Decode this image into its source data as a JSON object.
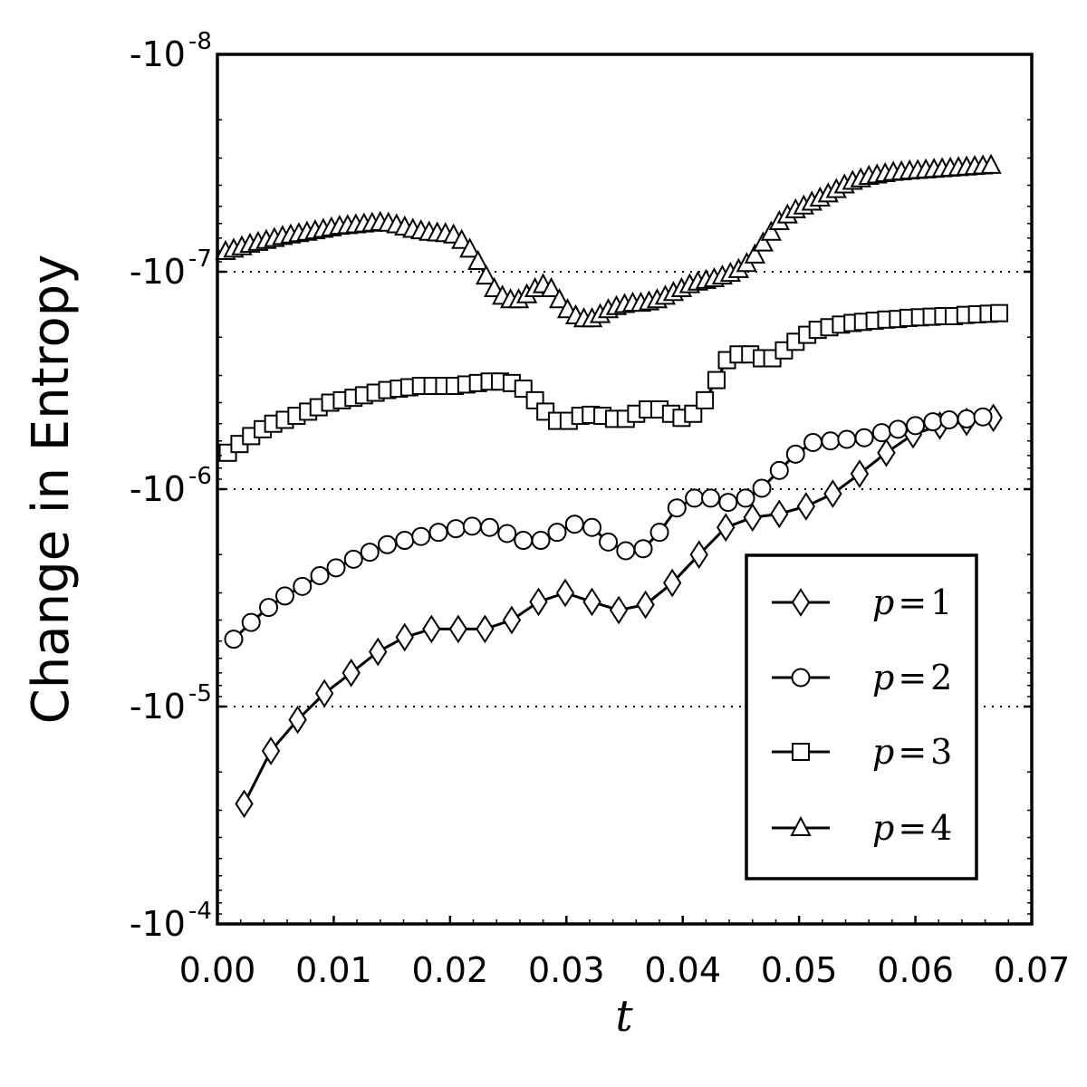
{
  "chart_data": {
    "type": "line",
    "xlabel": "t",
    "ylabel": "Change in Entropy",
    "xlim": [
      0.0,
      0.07
    ],
    "x_ticks": [
      "0.00",
      "0.01",
      "0.02",
      "0.03",
      "0.04",
      "0.05",
      "0.06",
      "0.07"
    ],
    "y_scale": "symlog-negative",
    "ylim_exponents": [
      -4,
      -8
    ],
    "y_ticks": [
      {
        "base": "-10",
        "exp": "-8",
        "value": -1e-08
      },
      {
        "base": "-10",
        "exp": "-7",
        "value": -1e-07
      },
      {
        "base": "-10",
        "exp": "-6",
        "value": -1e-06
      },
      {
        "base": "-10",
        "exp": "-5",
        "value": -1e-05
      },
      {
        "base": "-10",
        "exp": "-4",
        "value": -0.0001
      }
    ],
    "grid": "dotted horizontal at -1e-7, -1e-6, -1e-5",
    "legend_position": "lower-right",
    "series": [
      {
        "name": "p=1",
        "label_var": "p",
        "label_eq": "=",
        "label_num": "1",
        "marker": "diamond",
        "x": [
          0.0023,
          0.0046,
          0.0069,
          0.0092,
          0.0115,
          0.0138,
          0.0161,
          0.0184,
          0.0207,
          0.023,
          0.0253,
          0.0276,
          0.0299,
          0.0322,
          0.0345,
          0.0368,
          0.0391,
          0.0414,
          0.0437,
          0.046,
          0.0483,
          0.0506,
          0.0529,
          0.0552,
          0.0575,
          0.0598,
          0.0621,
          0.0644,
          0.0667
        ],
        "y": [
          -2.8e-05,
          -1.6e-05,
          -1.15e-05,
          -8.7e-06,
          -7e-06,
          -5.6e-06,
          -4.8e-06,
          -4.4e-06,
          -4.4e-06,
          -4.4e-06,
          -4e-06,
          -3.3e-06,
          -3e-06,
          -3.3e-06,
          -3.6e-06,
          -3.4e-06,
          -2.7e-06,
          -2e-06,
          -1.5e-06,
          -1.35e-06,
          -1.3e-06,
          -1.2e-06,
          -1.05e-06,
          -8.5e-07,
          -6.8e-07,
          -5.6e-07,
          -5.1e-07,
          -4.9e-07,
          -4.7e-07
        ]
      },
      {
        "name": "p=2",
        "label_var": "p",
        "label_eq": "=",
        "label_num": "2",
        "marker": "circle",
        "x": [
          0.0014,
          0.0029,
          0.0044,
          0.0058,
          0.0073,
          0.0088,
          0.0102,
          0.0117,
          0.0131,
          0.0146,
          0.0161,
          0.0175,
          0.019,
          0.0205,
          0.0219,
          0.0234,
          0.0249,
          0.0263,
          0.0278,
          0.0292,
          0.0307,
          0.0322,
          0.0336,
          0.0351,
          0.0366,
          0.038,
          0.0395,
          0.041,
          0.0424,
          0.0439,
          0.0454,
          0.0468,
          0.0483,
          0.0497,
          0.0512,
          0.0527,
          0.0541,
          0.0556,
          0.0571,
          0.0585,
          0.06,
          0.0615,
          0.0629,
          0.0644,
          0.0658
        ],
        "y": [
          -4.9e-06,
          -4.1e-06,
          -3.5e-06,
          -3.1e-06,
          -2.8e-06,
          -2.5e-06,
          -2.3e-06,
          -2.1e-06,
          -1.95e-06,
          -1.8e-06,
          -1.72e-06,
          -1.65e-06,
          -1.58e-06,
          -1.52e-06,
          -1.48e-06,
          -1.5e-06,
          -1.6e-06,
          -1.72e-06,
          -1.72e-06,
          -1.58e-06,
          -1.45e-06,
          -1.5e-06,
          -1.75e-06,
          -1.92e-06,
          -1.88e-06,
          -1.58e-06,
          -1.22e-06,
          -1.1e-06,
          -1.1e-06,
          -1.15e-06,
          -1.1e-06,
          -9.9e-07,
          -8.2e-07,
          -6.9e-07,
          -6.1e-07,
          -6e-07,
          -5.9e-07,
          -5.8e-07,
          -5.5e-07,
          -5.3e-07,
          -5.1e-07,
          -4.9e-07,
          -4.8e-07,
          -4.75e-07,
          -4.65e-07
        ]
      },
      {
        "name": "p=3",
        "label_var": "p",
        "label_eq": "=",
        "label_num": "3",
        "marker": "square",
        "x": [
          0.0009,
          0.0019,
          0.0029,
          0.0039,
          0.0048,
          0.0058,
          0.0068,
          0.0078,
          0.0087,
          0.0097,
          0.0107,
          0.0117,
          0.0126,
          0.0136,
          0.0146,
          0.0156,
          0.0165,
          0.0175,
          0.0185,
          0.0195,
          0.0204,
          0.0214,
          0.0224,
          0.0234,
          0.0243,
          0.0253,
          0.0263,
          0.0273,
          0.0282,
          0.0292,
          0.0302,
          0.0312,
          0.0321,
          0.0331,
          0.0341,
          0.0351,
          0.036,
          0.037,
          0.038,
          0.039,
          0.0399,
          0.0409,
          0.0419,
          0.0429,
          0.0438,
          0.0448,
          0.0458,
          0.0468,
          0.0477,
          0.0487,
          0.0497,
          0.0507,
          0.0516,
          0.0526,
          0.0536,
          0.0546,
          0.0555,
          0.0565,
          0.0575,
          0.0585,
          0.0594,
          0.0604,
          0.0614,
          0.0624,
          0.0633,
          0.0643,
          0.0653,
          0.0663,
          0.0672
        ],
        "y": [
          -6.8e-07,
          -6.2e-07,
          -5.7e-07,
          -5.3e-07,
          -5e-07,
          -4.8e-07,
          -4.6e-07,
          -4.4e-07,
          -4.2e-07,
          -4e-07,
          -3.9e-07,
          -3.8e-07,
          -3.7e-07,
          -3.6e-07,
          -3.5e-07,
          -3.45e-07,
          -3.4e-07,
          -3.35e-07,
          -3.35e-07,
          -3.35e-07,
          -3.35e-07,
          -3.3e-07,
          -3.25e-07,
          -3.2e-07,
          -3.2e-07,
          -3.25e-07,
          -3.45e-07,
          -3.9e-07,
          -4.4e-07,
          -4.85e-07,
          -4.85e-07,
          -4.6e-07,
          -4.55e-07,
          -4.6e-07,
          -4.75e-07,
          -4.75e-07,
          -4.5e-07,
          -4.3e-07,
          -4.3e-07,
          -4.5e-07,
          -4.7e-07,
          -4.5e-07,
          -3.9e-07,
          -3.15e-07,
          -2.55e-07,
          -2.4e-07,
          -2.4e-07,
          -2.5e-07,
          -2.5e-07,
          -2.3e-07,
          -2.1e-07,
          -1.95e-07,
          -1.85e-07,
          -1.8e-07,
          -1.75e-07,
          -1.72e-07,
          -1.7e-07,
          -1.68e-07,
          -1.66e-07,
          -1.65e-07,
          -1.63e-07,
          -1.62e-07,
          -1.61e-07,
          -1.6e-07,
          -1.6e-07,
          -1.58e-07,
          -1.57e-07,
          -1.56e-07,
          -1.55e-07
        ]
      },
      {
        "name": "p=4",
        "label_var": "p",
        "label_eq": "=",
        "label_num": "4",
        "marker": "triangle",
        "x": [
          0.0007,
          0.0014,
          0.0021,
          0.0028,
          0.0035,
          0.0042,
          0.0049,
          0.0056,
          0.0063,
          0.007,
          0.0077,
          0.0084,
          0.0091,
          0.0098,
          0.0105,
          0.0112,
          0.0119,
          0.0126,
          0.0133,
          0.014,
          0.0147,
          0.0154,
          0.0161,
          0.0168,
          0.0175,
          0.0182,
          0.0189,
          0.0196,
          0.0203,
          0.021,
          0.0217,
          0.0224,
          0.0231,
          0.0238,
          0.0245,
          0.0252,
          0.0259,
          0.0266,
          0.0273,
          0.028,
          0.0287,
          0.0294,
          0.0301,
          0.0308,
          0.0315,
          0.0322,
          0.0329,
          0.0336,
          0.0343,
          0.035,
          0.0357,
          0.0364,
          0.0371,
          0.0378,
          0.0385,
          0.0392,
          0.0399,
          0.0406,
          0.0413,
          0.042,
          0.0427,
          0.0434,
          0.0441,
          0.0448,
          0.0455,
          0.0462,
          0.0469,
          0.0476,
          0.0483,
          0.049,
          0.0497,
          0.0504,
          0.0511,
          0.0518,
          0.0525,
          0.0532,
          0.0539,
          0.0546,
          0.0553,
          0.056,
          0.0567,
          0.0574,
          0.0581,
          0.0588,
          0.0595,
          0.0602,
          0.0609,
          0.0616,
          0.0623,
          0.063,
          0.0637,
          0.0644,
          0.0651,
          0.0658,
          0.0665
        ],
        "y": [
          -8.1e-08,
          -7.9e-08,
          -7.7e-08,
          -7.5e-08,
          -7.35e-08,
          -7.2e-08,
          -7.05e-08,
          -6.9e-08,
          -6.8e-08,
          -6.7e-08,
          -6.6e-08,
          -6.5e-08,
          -6.4e-08,
          -6.3e-08,
          -6.2e-08,
          -6.15e-08,
          -6.1e-08,
          -6.05e-08,
          -6e-08,
          -5.95e-08,
          -6e-08,
          -6.1e-08,
          -6.25e-08,
          -6.4e-08,
          -6.5e-08,
          -6.6e-08,
          -6.65e-08,
          -6.7e-08,
          -6.8e-08,
          -7.2e-08,
          -7.9e-08,
          -9e-08,
          -1.05e-07,
          -1.2e-07,
          -1.3e-07,
          -1.35e-07,
          -1.35e-07,
          -1.28e-07,
          -1.2e-07,
          -1.15e-07,
          -1.2e-07,
          -1.35e-07,
          -1.5e-07,
          -1.6e-07,
          -1.65e-07,
          -1.65e-07,
          -1.58e-07,
          -1.5e-07,
          -1.45e-07,
          -1.42e-07,
          -1.4e-07,
          -1.4e-07,
          -1.38e-07,
          -1.35e-07,
          -1.3e-07,
          -1.25e-07,
          -1.2e-07,
          -1.15e-07,
          -1.12e-07,
          -1.1e-07,
          -1.08e-07,
          -1.05e-07,
          -1.02e-07,
          -9.8e-08,
          -9.2e-08,
          -8.4e-08,
          -7.4e-08,
          -6.6e-08,
          -5.9e-08,
          -5.5e-08,
          -5.2e-08,
          -5e-08,
          -4.8e-08,
          -4.6e-08,
          -4.4e-08,
          -4.2e-08,
          -4e-08,
          -3.85e-08,
          -3.75e-08,
          -3.65e-08,
          -3.6e-08,
          -3.55e-08,
          -3.5e-08,
          -3.48e-08,
          -3.45e-08,
          -3.43e-08,
          -3.41e-08,
          -3.39e-08,
          -3.37e-08,
          -3.35e-08,
          -3.33e-08,
          -3.31e-08,
          -3.29e-08,
          -3.27e-08,
          -3.25e-08
        ]
      }
    ]
  }
}
